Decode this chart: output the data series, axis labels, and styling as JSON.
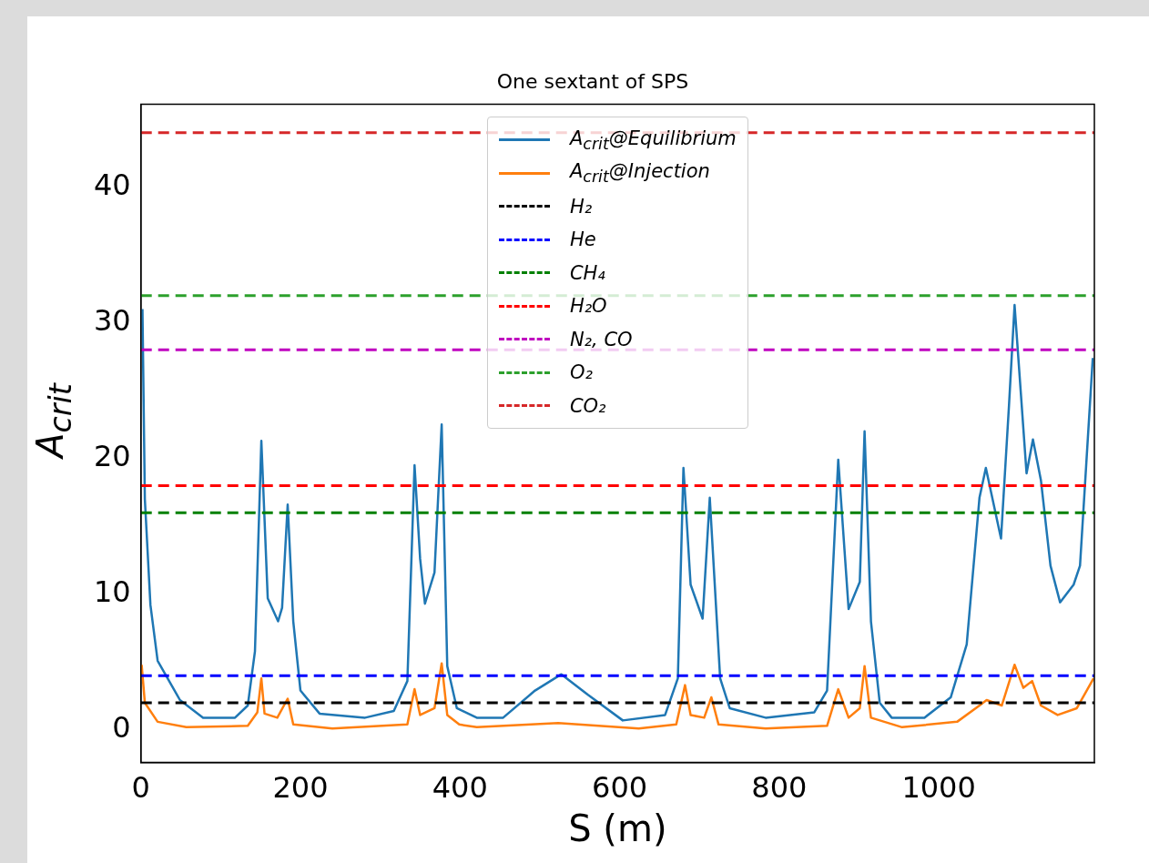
{
  "chart_data": {
    "type": "line",
    "title": "One sextant of SPS",
    "xlabel": "S (m)",
    "ylabel": "A$_{crit}$",
    "xlim": [
      0,
      1195
    ],
    "xticks": [
      0,
      200,
      400,
      600,
      800,
      1000
    ],
    "ylim": [
      -2.4,
      46.1
    ],
    "yticks": [
      0,
      10,
      20,
      30,
      40
    ],
    "grid": false,
    "legend": "top",
    "marker": "none",
    "series": [
      {
        "name": "A$_{crit}$@Equilibrium",
        "color": "#1f77b4",
        "line_style": "solid",
        "x": [
          2,
          5,
          12,
          21,
          49,
          78,
          118,
          134,
          143,
          151,
          159,
          172,
          177,
          184,
          191,
          200,
          224,
          281,
          317,
          334,
          343,
          350,
          356,
          368,
          377,
          384,
          396,
          421,
          454,
          494,
          527,
          560,
          604,
          657,
          673,
          680,
          689,
          704,
          713,
          726,
          738,
          783,
          844,
          860,
          874,
          887,
          901,
          907,
          915,
          926,
          941,
          982,
          1015,
          1035,
          1051,
          1059,
          1078,
          1088,
          1095,
          1110,
          1118,
          1128,
          1140,
          1152,
          1169,
          1177,
          1193
        ],
        "values": [
          31,
          17,
          9.2,
          5.1,
          2.2,
          0.9,
          0.9,
          1.8,
          5.8,
          21.3,
          9.7,
          8,
          9,
          16.6,
          8,
          2.9,
          1.2,
          0.9,
          1.4,
          3.6,
          19.5,
          12.6,
          9.3,
          11.6,
          22.5,
          4.7,
          1.6,
          0.9,
          0.9,
          2.9,
          4.1,
          2.6,
          0.7,
          1.1,
          3.8,
          19.3,
          10.7,
          8.2,
          17.1,
          3.8,
          1.6,
          0.9,
          1.3,
          2.9,
          19.9,
          8.9,
          10.9,
          22,
          8,
          2,
          0.9,
          0.9,
          2.4,
          6.3,
          17.1,
          19.3,
          14.1,
          23.9,
          31.3,
          18.9,
          21.4,
          18.4,
          12.1,
          9.4,
          10.7,
          12.1,
          27.4
        ]
      },
      {
        "name": "A$_{crit}$@Injection",
        "color": "#ff7f0e",
        "line_style": "solid",
        "x": [
          1,
          5,
          21,
          57,
          134,
          146,
          151,
          155,
          171,
          184,
          191,
          240,
          334,
          343,
          350,
          368,
          377,
          384,
          399,
          421,
          523,
          624,
          671,
          682,
          689,
          706,
          715,
          724,
          783,
          860,
          874,
          887,
          901,
          907,
          915,
          954,
          1023,
          1051,
          1060,
          1079,
          1095,
          1106,
          1117,
          1128,
          1149,
          1173,
          1194
        ],
        "values": [
          4.8,
          2,
          0.6,
          0.2,
          0.3,
          1.3,
          3.8,
          1.2,
          0.9,
          2.3,
          0.4,
          0.1,
          0.4,
          3,
          1.1,
          1.6,
          4.9,
          1.1,
          0.4,
          0.2,
          0.5,
          0.1,
          0.4,
          3.3,
          1.1,
          0.9,
          2.4,
          0.4,
          0.1,
          0.3,
          3,
          0.9,
          1.6,
          4.7,
          0.9,
          0.2,
          0.6,
          1.8,
          2.2,
          1.8,
          4.8,
          3.1,
          3.6,
          1.8,
          1.1,
          1.6,
          3.8
        ]
      }
    ],
    "ref_lines": [
      {
        "axis": "y",
        "value": 2,
        "label": "H₂",
        "color": "#000000",
        "line_style": "dashed"
      },
      {
        "axis": "y",
        "value": 4,
        "label": "He",
        "color": "#0000ff",
        "line_style": "dashed"
      },
      {
        "axis": "y",
        "value": 16,
        "label": "CH₄",
        "color": "#008000",
        "line_style": "dashed"
      },
      {
        "axis": "y",
        "value": 18,
        "label": "H₂O",
        "color": "#ff0000",
        "line_style": "dashed"
      },
      {
        "axis": "y",
        "value": 28,
        "label": "N₂, CO",
        "color": "#bf00bf",
        "line_style": "dashed"
      },
      {
        "axis": "y",
        "value": 32,
        "label": "O₂",
        "color": "#2ca02c",
        "line_style": "dashed"
      },
      {
        "axis": "y",
        "value": 44,
        "label": "CO₂",
        "color": "#d62728",
        "line_style": "dashed"
      }
    ]
  }
}
